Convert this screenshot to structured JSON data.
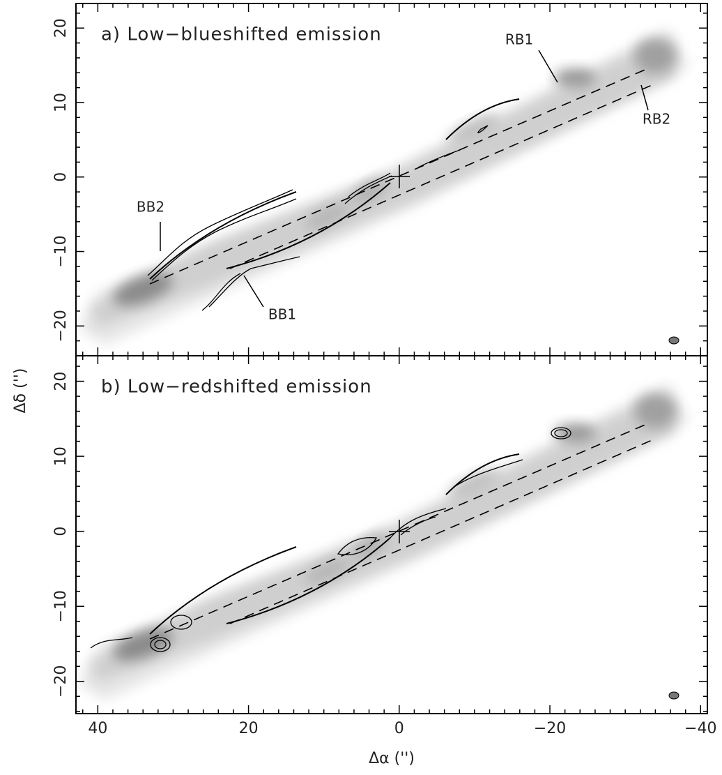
{
  "chart_data": [
    {
      "type": "map",
      "title": "a) Low−blueshifted emission",
      "annotations": [
        "RB1",
        "RB2",
        "BB1",
        "BB2"
      ],
      "y_label": "Δδ ('')",
      "xlim": [
        42.9,
        -40.9
      ],
      "ylim": [
        -24.0,
        23.3
      ],
      "xticks": [
        40,
        20,
        0,
        -20,
        -40
      ],
      "yticks": [
        {
          "value": 20,
          "label": "20"
        },
        {
          "value": 10,
          "label": "10"
        },
        {
          "value": 0,
          "label": "0"
        },
        {
          "value": -10,
          "label": "−10"
        },
        {
          "value": -20,
          "label": "−20"
        }
      ],
      "xminorticks": [
        42,
        38,
        36,
        34,
        32,
        30,
        28,
        26,
        24,
        22,
        18,
        16,
        14,
        12,
        10,
        8,
        6,
        4,
        2,
        -2,
        -4,
        -6,
        -8,
        -10,
        -12,
        -14,
        -16,
        -18,
        -22,
        -24,
        -26,
        -28,
        -30,
        -32,
        -34,
        -36,
        -38
      ],
      "yminorticks": [
        22,
        18,
        16,
        14,
        12,
        8,
        6,
        4,
        2,
        -2,
        -4,
        -6,
        -8,
        -12,
        -14,
        -16,
        -18,
        -22,
        -24
      ]
    },
    {
      "type": "map",
      "title": "b) Low−redshifted emission",
      "x_label": "Δα ('')",
      "xlim": [
        42.9,
        -40.9
      ],
      "ylim": [
        -24.3,
        23.4
      ],
      "xticks": [
        {
          "value": 40,
          "label": "40"
        },
        {
          "value": 20,
          "label": "20"
        },
        {
          "value": 0,
          "label": "0"
        },
        {
          "value": -20,
          "label": "−20"
        },
        {
          "value": -40,
          "label": "−40"
        }
      ],
      "yticks": [
        {
          "value": 20,
          "label": "20"
        },
        {
          "value": 10,
          "label": "10"
        },
        {
          "value": 0,
          "label": "0"
        },
        {
          "value": -10,
          "label": "−10"
        },
        {
          "value": -20,
          "label": "−20"
        }
      ],
      "xminorticks": [
        42,
        38,
        36,
        34,
        32,
        30,
        28,
        26,
        24,
        22,
        18,
        16,
        14,
        12,
        10,
        8,
        6,
        4,
        2,
        -2,
        -4,
        -6,
        -8,
        -10,
        -12,
        -14,
        -16,
        -18,
        -22,
        -24,
        -26,
        -28,
        -30,
        -32,
        -34,
        -36,
        -38
      ],
      "yminorticks": [
        22,
        18,
        16,
        14,
        12,
        8,
        6,
        4,
        2,
        -2,
        -4,
        -6,
        -8,
        -12,
        -14,
        -16,
        -18,
        -22,
        -24
      ]
    }
  ]
}
